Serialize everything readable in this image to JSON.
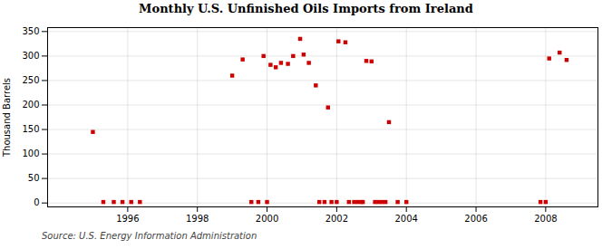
{
  "chart_data": {
    "type": "scatter",
    "title": "Monthly U.S. Unfinished Oils Imports from Ireland",
    "ylabel": "Thousand Barrels",
    "annotation": "Source: U.S. Energy Information Administration",
    "x": [
      1995.0,
      1999.0,
      1999.3,
      1999.9,
      2000.1,
      2000.25,
      2000.4,
      2000.6,
      2000.75,
      2000.95,
      2001.05,
      2001.2,
      2001.4,
      2001.75,
      2002.05,
      2002.25,
      2002.85,
      2003.0,
      2003.5,
      2008.1,
      2008.4,
      2008.6,
      1995.3,
      1995.6,
      1995.85,
      1996.1,
      1996.35,
      1999.55,
      1999.75,
      2000.0,
      2001.5,
      2001.65,
      2001.85,
      2002.0,
      2002.35,
      2002.5,
      2002.6,
      2002.7,
      2002.75,
      2003.1,
      2003.2,
      2003.3,
      2003.4,
      2003.75,
      2004.0,
      2007.85,
      2008.0
    ],
    "values": [
      145,
      260,
      293,
      300,
      282,
      277,
      286,
      284,
      300,
      335,
      303,
      286,
      240,
      195,
      330,
      328,
      290,
      289,
      165,
      295,
      307,
      292,
      2,
      2,
      2,
      2,
      2,
      2,
      2,
      2,
      2,
      2,
      2,
      2,
      2,
      2,
      2,
      2,
      2,
      2,
      2,
      2,
      2,
      2,
      2,
      2,
      2
    ],
    "color": "#cc0000",
    "marker": "square",
    "xlim": [
      1993.7,
      2009.5
    ],
    "xticks": [
      1996,
      1998,
      2000,
      2002,
      2004,
      2006,
      2008
    ],
    "ylim": [
      -8,
      358
    ],
    "yticks": [
      0,
      50,
      100,
      150,
      200,
      250,
      300,
      350
    ],
    "grid": true
  }
}
